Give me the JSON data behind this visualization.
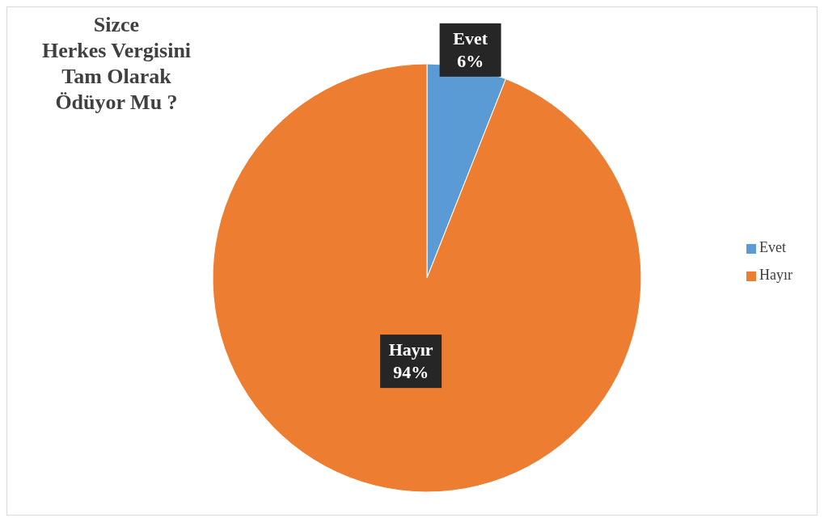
{
  "chart_data": {
    "type": "pie",
    "title": "Sizce\nHerkes Vergisini\nTam Olarak\nÖdüyor Mu ?",
    "categories": [
      "Evet",
      "Hayır"
    ],
    "values": [
      6,
      94
    ],
    "colors": [
      "#5b9bd5",
      "#ed7d31"
    ],
    "value_labels": [
      "6%",
      "94%"
    ],
    "legend": "right"
  }
}
